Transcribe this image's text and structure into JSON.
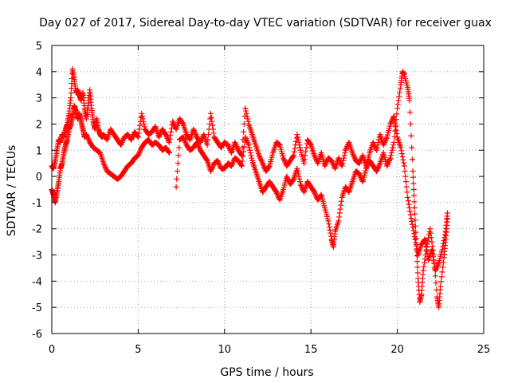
{
  "chart_data": {
    "type": "scatter",
    "title": "Day 027 of 2017, Sidereal Day-to-day VTEC variation (SDTVAR) for receiver guax",
    "xlabel": "GPS time / hours",
    "ylabel": "SDTVAR / TECUs",
    "xlim": [
      0,
      25
    ],
    "ylim": [
      -6,
      5
    ],
    "xticks": [
      0,
      5,
      10,
      15,
      20,
      25
    ],
    "yticks": [
      -6,
      -5,
      -4,
      -3,
      -2,
      -1,
      0,
      1,
      2,
      3,
      4,
      5
    ],
    "grid": true,
    "marker": "+",
    "color": "#ff0000",
    "series": [
      {
        "name": "guax",
        "segments": [
          [
            [
              0.0,
              0.4
            ],
            [
              0.1,
              0.3
            ],
            [
              0.2,
              0.6
            ],
            [
              0.3,
              1.0
            ],
            [
              0.4,
              1.4
            ],
            [
              0.5,
              1.3
            ],
            [
              0.6,
              1.6
            ],
            [
              0.7,
              1.5
            ],
            [
              0.8,
              1.8
            ],
            [
              0.9,
              2.0
            ],
            [
              1.0,
              2.4
            ],
            [
              1.1,
              3.0
            ],
            [
              1.2,
              4.1
            ],
            [
              1.3,
              3.7
            ],
            [
              1.4,
              3.2
            ],
            [
              1.5,
              3.3
            ],
            [
              1.6,
              3.1
            ],
            [
              1.7,
              2.9
            ],
            [
              1.8,
              3.2
            ],
            [
              1.9,
              2.6
            ],
            [
              2.0,
              2.2
            ],
            [
              2.1,
              2.7
            ],
            [
              2.2,
              3.3
            ],
            [
              2.3,
              2.6
            ],
            [
              2.4,
              2.1
            ],
            [
              2.5,
              1.8
            ],
            [
              2.6,
              2.2
            ],
            [
              2.7,
              1.8
            ],
            [
              2.8,
              1.6
            ],
            [
              2.9,
              1.5
            ],
            [
              3.0,
              1.6
            ],
            [
              3.2,
              1.4
            ],
            [
              3.4,
              1.8
            ],
            [
              3.6,
              1.6
            ],
            [
              3.8,
              1.4
            ],
            [
              4.0,
              1.2
            ],
            [
              4.2,
              1.5
            ],
            [
              4.4,
              1.6
            ],
            [
              4.6,
              1.4
            ],
            [
              4.8,
              1.7
            ],
            [
              5.0,
              1.5
            ],
            [
              5.2,
              2.4
            ],
            [
              5.4,
              1.8
            ],
            [
              5.6,
              1.6
            ],
            [
              5.8,
              1.7
            ],
            [
              6.0,
              1.9
            ],
            [
              6.2,
              1.5
            ],
            [
              6.4,
              1.8
            ],
            [
              6.6,
              1.6
            ],
            [
              6.8,
              1.3
            ],
            [
              7.0,
              2.1
            ],
            [
              7.2,
              1.8
            ],
            [
              7.4,
              2.2
            ],
            [
              7.6,
              2.0
            ],
            [
              7.8,
              1.6
            ],
            [
              8.0,
              1.4
            ],
            [
              8.2,
              1.8
            ],
            [
              8.4,
              1.5
            ],
            [
              8.6,
              1.3
            ],
            [
              8.8,
              1.6
            ],
            [
              9.0,
              1.2
            ],
            [
              9.2,
              2.4
            ],
            [
              9.4,
              1.5
            ],
            [
              9.6,
              1.3
            ],
            [
              9.8,
              1.1
            ],
            [
              10.0,
              1.3
            ],
            [
              10.2,
              1.2
            ],
            [
              10.4,
              0.9
            ],
            [
              10.6,
              1.3
            ],
            [
              10.8,
              1.0
            ],
            [
              11.0,
              0.8
            ],
            [
              11.2,
              2.6
            ],
            [
              11.4,
              2.0
            ],
            [
              11.6,
              1.6
            ],
            [
              11.8,
              1.2
            ],
            [
              12.0,
              0.8
            ],
            [
              12.2,
              0.5
            ],
            [
              12.4,
              0.2
            ],
            [
              12.6,
              0.4
            ],
            [
              12.8,
              0.9
            ],
            [
              13.0,
              1.3
            ],
            [
              13.2,
              1.2
            ],
            [
              13.4,
              0.7
            ],
            [
              13.6,
              0.4
            ],
            [
              13.8,
              0.6
            ],
            [
              14.0,
              0.8
            ],
            [
              14.2,
              1.6
            ],
            [
              14.4,
              1.0
            ],
            [
              14.6,
              0.5
            ],
            [
              14.8,
              1.4
            ],
            [
              15.0,
              1.2
            ],
            [
              15.2,
              0.8
            ],
            [
              15.4,
              0.5
            ],
            [
              15.6,
              0.9
            ],
            [
              15.8,
              0.4
            ],
            [
              16.0,
              0.7
            ],
            [
              16.2,
              0.6
            ],
            [
              16.4,
              0.3
            ],
            [
              16.6,
              0.7
            ],
            [
              16.8,
              0.4
            ],
            [
              17.0,
              1.0
            ],
            [
              17.2,
              1.3
            ],
            [
              17.4,
              0.9
            ],
            [
              17.6,
              0.6
            ],
            [
              17.8,
              0.5
            ],
            [
              18.0,
              0.8
            ],
            [
              18.2,
              0.4
            ],
            [
              18.4,
              0.9
            ],
            [
              18.6,
              1.3
            ],
            [
              18.8,
              1.0
            ],
            [
              19.0,
              1.6
            ],
            [
              19.2,
              1.2
            ],
            [
              19.4,
              1.5
            ],
            [
              19.6,
              2.0
            ],
            [
              19.8,
              2.3
            ],
            [
              20.0,
              1.5
            ],
            [
              20.2,
              1.1
            ],
            [
              20.4,
              0.4
            ],
            [
              20.6,
              -0.8
            ],
            [
              20.8,
              -1.6
            ],
            [
              21.0,
              -2.3
            ],
            [
              21.2,
              -3.0
            ],
            [
              21.4,
              -2.6
            ],
            [
              21.6,
              -2.4
            ],
            [
              21.8,
              -3.2
            ],
            [
              22.0,
              -2.8
            ],
            [
              22.2,
              -3.6
            ],
            [
              22.4,
              -3.3
            ],
            [
              22.6,
              -2.8
            ],
            [
              22.8,
              -2.1
            ],
            [
              22.9,
              -1.4
            ]
          ],
          [
            [
              0.0,
              -0.5
            ],
            [
              0.1,
              -0.7
            ],
            [
              0.2,
              -1.0
            ],
            [
              0.3,
              -0.6
            ],
            [
              0.4,
              -0.2
            ],
            [
              0.5,
              0.3
            ],
            [
              0.6,
              0.5
            ],
            [
              0.7,
              0.9
            ],
            [
              0.8,
              1.2
            ],
            [
              0.9,
              1.4
            ],
            [
              1.0,
              1.8
            ],
            [
              1.1,
              2.0
            ],
            [
              1.2,
              2.3
            ],
            [
              1.3,
              2.7
            ],
            [
              1.4,
              2.5
            ],
            [
              1.5,
              2.2
            ],
            [
              1.6,
              2.4
            ],
            [
              1.7,
              2.1
            ],
            [
              1.8,
              1.8
            ],
            [
              1.9,
              1.5
            ],
            [
              2.0,
              1.6
            ],
            [
              2.2,
              1.3
            ],
            [
              2.4,
              1.1
            ],
            [
              2.6,
              1.0
            ],
            [
              2.8,
              0.9
            ],
            [
              3.0,
              0.5
            ],
            [
              3.2,
              0.2
            ],
            [
              3.4,
              0.1
            ],
            [
              3.6,
              0.0
            ],
            [
              3.8,
              -0.1
            ],
            [
              4.0,
              0.0
            ],
            [
              4.2,
              0.2
            ],
            [
              4.4,
              0.4
            ],
            [
              4.6,
              0.5
            ],
            [
              4.8,
              0.7
            ],
            [
              5.0,
              0.8
            ],
            [
              5.2,
              1.1
            ],
            [
              5.4,
              1.3
            ],
            [
              5.6,
              1.4
            ],
            [
              5.8,
              1.2
            ],
            [
              6.0,
              1.3
            ],
            [
              6.2,
              1.2
            ],
            [
              6.4,
              1.0
            ],
            [
              6.6,
              1.1
            ],
            [
              6.8,
              0.9
            ],
            [
              7.2,
              -0.4
            ],
            [
              7.4,
              1.4
            ],
            [
              7.6,
              1.5
            ],
            [
              7.8,
              1.2
            ],
            [
              8.0,
              1.0
            ],
            [
              8.2,
              1.1
            ],
            [
              8.4,
              1.3
            ],
            [
              8.6,
              1.0
            ],
            [
              8.8,
              0.8
            ],
            [
              9.0,
              0.6
            ],
            [
              9.2,
              0.2
            ],
            [
              9.4,
              0.5
            ],
            [
              9.6,
              0.6
            ],
            [
              9.8,
              0.3
            ],
            [
              10.0,
              0.3
            ],
            [
              10.2,
              0.5
            ],
            [
              10.4,
              0.4
            ],
            [
              10.6,
              0.7
            ],
            [
              10.8,
              0.6
            ],
            [
              11.0,
              0.4
            ],
            [
              11.2,
              1.5
            ],
            [
              11.4,
              1.2
            ],
            [
              11.6,
              0.6
            ],
            [
              11.8,
              0.2
            ],
            [
              12.0,
              -0.2
            ],
            [
              12.2,
              -0.6
            ],
            [
              12.4,
              -0.4
            ],
            [
              12.6,
              -0.2
            ],
            [
              12.8,
              -0.4
            ],
            [
              13.0,
              -0.6
            ],
            [
              13.2,
              -0.9
            ],
            [
              13.4,
              -0.5
            ],
            [
              13.6,
              0.0
            ],
            [
              13.8,
              -0.3
            ],
            [
              14.0,
              -0.1
            ],
            [
              14.2,
              0.3
            ],
            [
              14.4,
              -0.3
            ],
            [
              14.6,
              -0.6
            ],
            [
              14.8,
              -0.2
            ],
            [
              15.0,
              -0.4
            ],
            [
              15.2,
              -0.6
            ],
            [
              15.4,
              -0.9
            ],
            [
              15.6,
              -0.7
            ],
            [
              15.8,
              -1.2
            ],
            [
              16.0,
              -1.7
            ],
            [
              16.2,
              -2.4
            ],
            [
              16.3,
              -2.7
            ],
            [
              16.4,
              -2.1
            ],
            [
              16.6,
              -1.7
            ],
            [
              16.8,
              -0.8
            ],
            [
              17.0,
              -0.4
            ],
            [
              17.2,
              -0.6
            ],
            [
              17.4,
              -0.2
            ],
            [
              17.6,
              0.2
            ],
            [
              17.8,
              0.1
            ],
            [
              18.0,
              -0.2
            ],
            [
              18.2,
              0.3
            ],
            [
              18.4,
              0.6
            ],
            [
              18.6,
              0.4
            ],
            [
              18.8,
              0.2
            ],
            [
              19.0,
              0.5
            ],
            [
              19.2,
              0.9
            ],
            [
              19.4,
              0.4
            ],
            [
              19.6,
              0.7
            ],
            [
              19.8,
              1.3
            ],
            [
              20.0,
              2.6
            ],
            [
              20.2,
              3.5
            ],
            [
              20.3,
              4.0
            ],
            [
              20.4,
              3.9
            ],
            [
              20.6,
              3.4
            ],
            [
              20.7,
              2.9
            ],
            [
              20.9,
              0.2
            ],
            [
              21.0,
              -1.2
            ],
            [
              21.1,
              -2.6
            ],
            [
              21.2,
              -3.9
            ],
            [
              21.3,
              -4.8
            ],
            [
              21.4,
              -4.5
            ],
            [
              21.5,
              -3.6
            ],
            [
              21.7,
              -2.7
            ],
            [
              21.9,
              -2.0
            ],
            [
              22.1,
              -3.0
            ],
            [
              22.3,
              -4.6
            ],
            [
              22.4,
              -5.0
            ],
            [
              22.5,
              -4.2
            ],
            [
              22.7,
              -3.1
            ],
            [
              22.8,
              -2.4
            ],
            [
              22.9,
              -1.6
            ]
          ]
        ]
      }
    ]
  }
}
